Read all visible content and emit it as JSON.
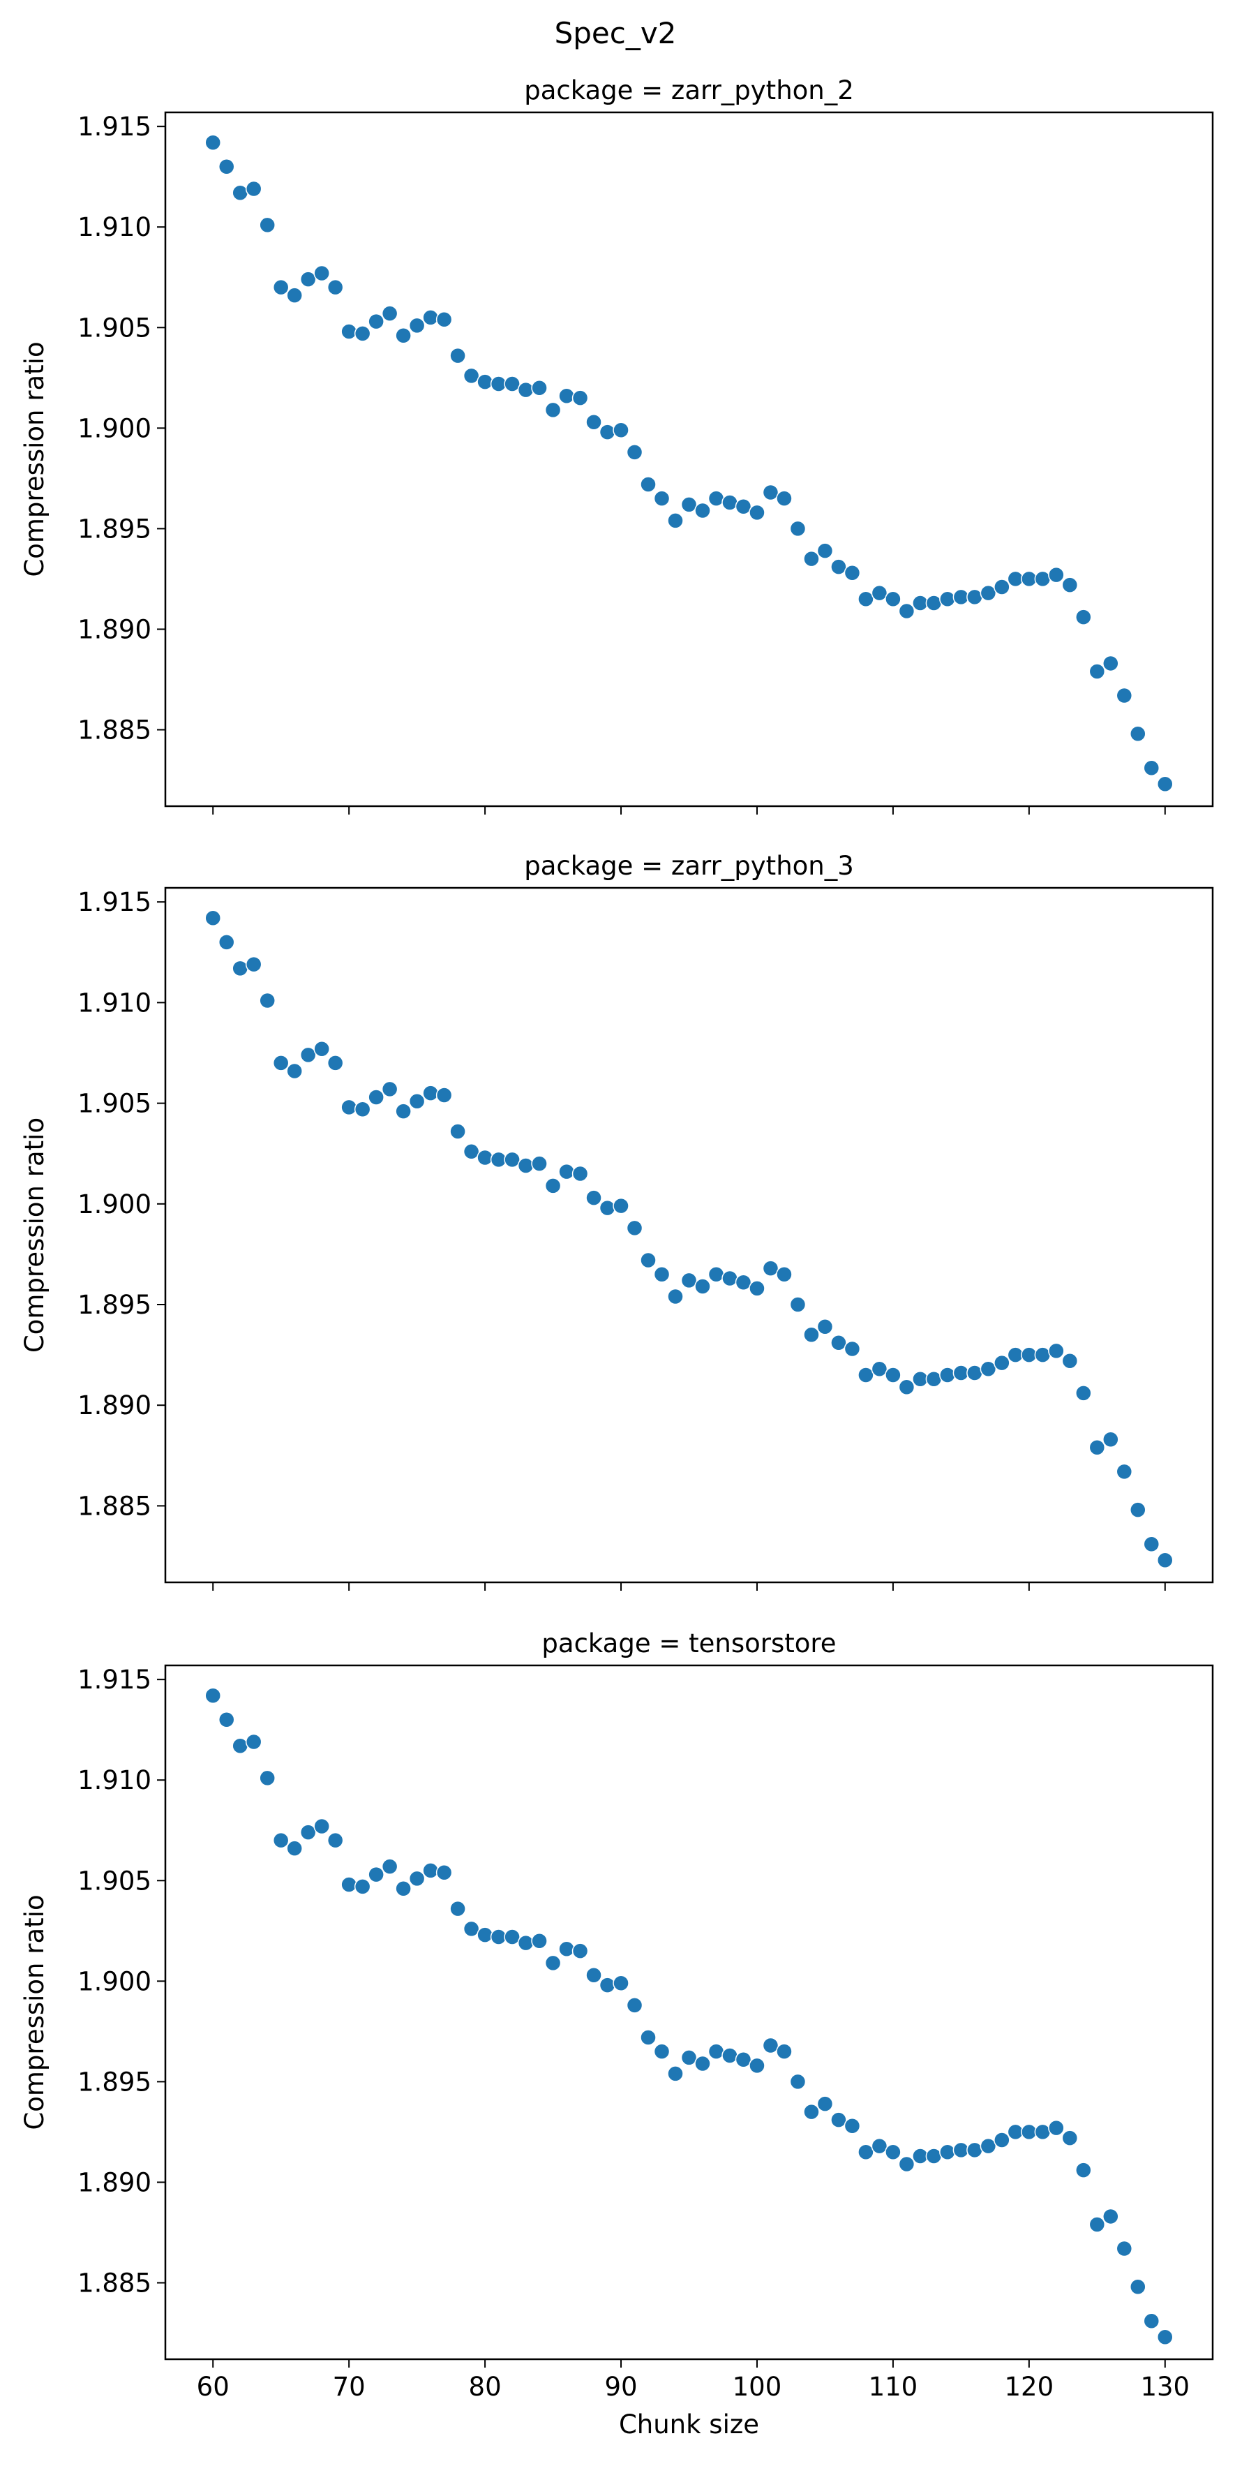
{
  "figure": {
    "suptitle": "Spec_v2",
    "marker_color": "#1f77b4"
  },
  "chart_data": [
    {
      "type": "scatter",
      "title": "package = zarr_python_2",
      "xlabel": "",
      "ylabel": "Compression ratio",
      "xlim": [
        56.5,
        133.5
      ],
      "ylim": [
        1.8812,
        1.9157
      ],
      "xticks": [
        "60",
        "70",
        "80",
        "90",
        "100",
        "110",
        "120",
        "130"
      ],
      "yticks": [
        "1.915",
        "1.910",
        "1.905",
        "1.900",
        "1.895",
        "1.890",
        "1.885"
      ],
      "x": [
        60,
        61,
        62,
        63,
        64,
        65,
        66,
        67,
        68,
        69,
        70,
        71,
        72,
        73,
        74,
        75,
        76,
        77,
        78,
        79,
        80,
        81,
        82,
        83,
        84,
        85,
        86,
        87,
        88,
        89,
        90,
        91,
        92,
        93,
        94,
        95,
        96,
        97,
        98,
        99,
        100,
        101,
        102,
        103,
        104,
        105,
        106,
        107,
        108,
        109,
        110,
        111,
        112,
        113,
        114,
        115,
        116,
        117,
        118,
        119,
        120,
        121,
        122,
        123,
        124,
        125,
        126,
        127,
        128,
        129,
        130
      ],
      "y": [
        1.9142,
        1.913,
        1.9117,
        1.9119,
        1.9101,
        1.907,
        1.9066,
        1.9074,
        1.9077,
        1.907,
        1.9048,
        1.9047,
        1.9053,
        1.9057,
        1.9046,
        1.9051,
        1.9055,
        1.9054,
        1.9036,
        1.9026,
        1.9023,
        1.9022,
        1.9022,
        1.9019,
        1.902,
        1.9009,
        1.9016,
        1.9015,
        1.9003,
        1.8998,
        1.8999,
        1.8988,
        1.8972,
        1.8965,
        1.8954,
        1.8962,
        1.8959,
        1.8965,
        1.8963,
        1.8961,
        1.8958,
        1.8968,
        1.8965,
        1.895,
        1.8935,
        1.8939,
        1.8931,
        1.8928,
        1.8915,
        1.8918,
        1.8915,
        1.8909,
        1.8913,
        1.8913,
        1.8915,
        1.8916,
        1.8916,
        1.8918,
        1.8921,
        1.8925,
        1.8925,
        1.8925,
        1.8927,
        1.8922,
        1.8906,
        1.8879,
        1.8883,
        1.8867,
        1.8848,
        1.8831,
        1.8823
      ]
    },
    {
      "type": "scatter",
      "title": "package = zarr_python_3",
      "xlabel": "",
      "ylabel": "Compression ratio",
      "xlim": [
        56.5,
        133.5
      ],
      "ylim": [
        1.8812,
        1.9157
      ],
      "xticks": [
        "60",
        "70",
        "80",
        "90",
        "100",
        "110",
        "120",
        "130"
      ],
      "yticks": [
        "1.915",
        "1.910",
        "1.905",
        "1.900",
        "1.895",
        "1.890",
        "1.885"
      ],
      "x": [
        60,
        61,
        62,
        63,
        64,
        65,
        66,
        67,
        68,
        69,
        70,
        71,
        72,
        73,
        74,
        75,
        76,
        77,
        78,
        79,
        80,
        81,
        82,
        83,
        84,
        85,
        86,
        87,
        88,
        89,
        90,
        91,
        92,
        93,
        94,
        95,
        96,
        97,
        98,
        99,
        100,
        101,
        102,
        103,
        104,
        105,
        106,
        107,
        108,
        109,
        110,
        111,
        112,
        113,
        114,
        115,
        116,
        117,
        118,
        119,
        120,
        121,
        122,
        123,
        124,
        125,
        126,
        127,
        128,
        129,
        130
      ],
      "y": [
        1.9142,
        1.913,
        1.9117,
        1.9119,
        1.9101,
        1.907,
        1.9066,
        1.9074,
        1.9077,
        1.907,
        1.9048,
        1.9047,
        1.9053,
        1.9057,
        1.9046,
        1.9051,
        1.9055,
        1.9054,
        1.9036,
        1.9026,
        1.9023,
        1.9022,
        1.9022,
        1.9019,
        1.902,
        1.9009,
        1.9016,
        1.9015,
        1.9003,
        1.8998,
        1.8999,
        1.8988,
        1.8972,
        1.8965,
        1.8954,
        1.8962,
        1.8959,
        1.8965,
        1.8963,
        1.8961,
        1.8958,
        1.8968,
        1.8965,
        1.895,
        1.8935,
        1.8939,
        1.8931,
        1.8928,
        1.8915,
        1.8918,
        1.8915,
        1.8909,
        1.8913,
        1.8913,
        1.8915,
        1.8916,
        1.8916,
        1.8918,
        1.8921,
        1.8925,
        1.8925,
        1.8925,
        1.8927,
        1.8922,
        1.8906,
        1.8879,
        1.8883,
        1.8867,
        1.8848,
        1.8831,
        1.8823
      ]
    },
    {
      "type": "scatter",
      "title": "package = tensorstore",
      "xlabel": "Chunk size",
      "ylabel": "Compression ratio",
      "xlim": [
        56.5,
        133.5
      ],
      "ylim": [
        1.8812,
        1.9157
      ],
      "xticks": [
        "60",
        "70",
        "80",
        "90",
        "100",
        "110",
        "120",
        "130"
      ],
      "yticks": [
        "1.915",
        "1.910",
        "1.905",
        "1.900",
        "1.895",
        "1.890",
        "1.885"
      ],
      "x": [
        60,
        61,
        62,
        63,
        64,
        65,
        66,
        67,
        68,
        69,
        70,
        71,
        72,
        73,
        74,
        75,
        76,
        77,
        78,
        79,
        80,
        81,
        82,
        83,
        84,
        85,
        86,
        87,
        88,
        89,
        90,
        91,
        92,
        93,
        94,
        95,
        96,
        97,
        98,
        99,
        100,
        101,
        102,
        103,
        104,
        105,
        106,
        107,
        108,
        109,
        110,
        111,
        112,
        113,
        114,
        115,
        116,
        117,
        118,
        119,
        120,
        121,
        122,
        123,
        124,
        125,
        126,
        127,
        128,
        129,
        130
      ],
      "y": [
        1.9142,
        1.913,
        1.9117,
        1.9119,
        1.9101,
        1.907,
        1.9066,
        1.9074,
        1.9077,
        1.907,
        1.9048,
        1.9047,
        1.9053,
        1.9057,
        1.9046,
        1.9051,
        1.9055,
        1.9054,
        1.9036,
        1.9026,
        1.9023,
        1.9022,
        1.9022,
        1.9019,
        1.902,
        1.9009,
        1.9016,
        1.9015,
        1.9003,
        1.8998,
        1.8999,
        1.8988,
        1.8972,
        1.8965,
        1.8954,
        1.8962,
        1.8959,
        1.8965,
        1.8963,
        1.8961,
        1.8958,
        1.8968,
        1.8965,
        1.895,
        1.8935,
        1.8939,
        1.8931,
        1.8928,
        1.8915,
        1.8918,
        1.8915,
        1.8909,
        1.8913,
        1.8913,
        1.8915,
        1.8916,
        1.8916,
        1.8918,
        1.8921,
        1.8925,
        1.8925,
        1.8925,
        1.8927,
        1.8922,
        1.8906,
        1.8879,
        1.8883,
        1.8867,
        1.8848,
        1.8831,
        1.8823
      ]
    }
  ]
}
